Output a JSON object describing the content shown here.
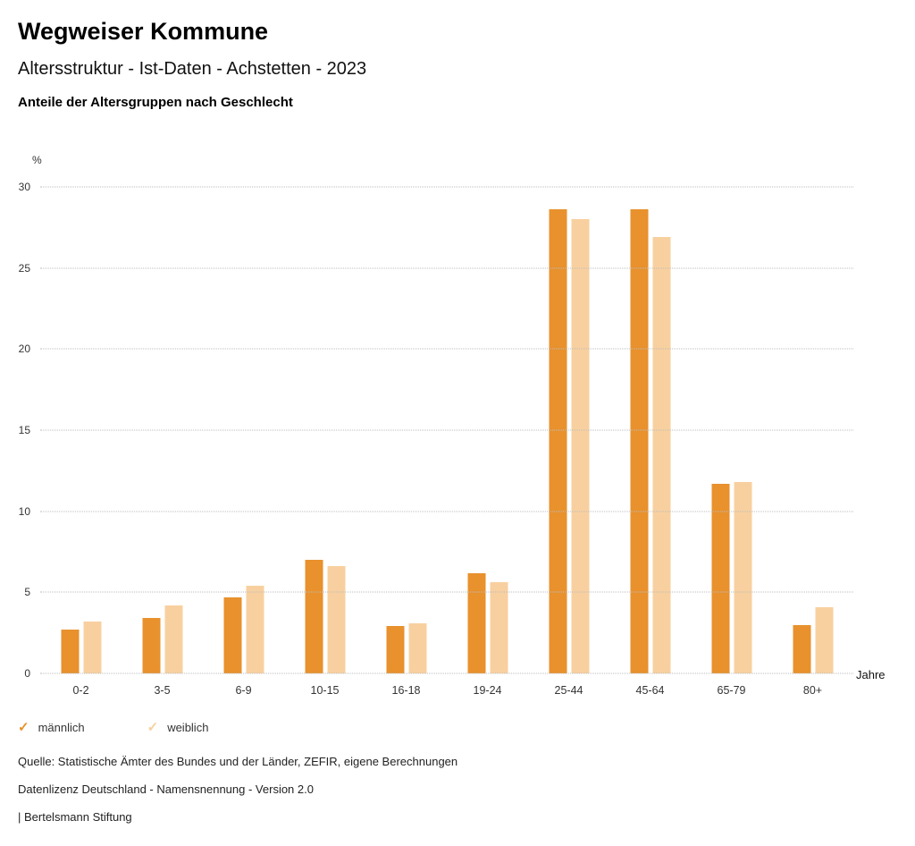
{
  "header": {
    "title": "Wegweiser Kommune",
    "subtitle": "Altersstruktur - Ist-Daten - Achstetten - 2023",
    "chart_heading": "Anteile der Altersgruppen nach Geschlecht"
  },
  "chart_data": {
    "type": "bar",
    "categories": [
      "0-2",
      "3-5",
      "6-9",
      "10-15",
      "16-18",
      "19-24",
      "25-44",
      "45-64",
      "65-79",
      "80+"
    ],
    "series": [
      {
        "name": "männlich",
        "color": "#E8912D",
        "values": [
          2.7,
          3.4,
          4.7,
          7.0,
          2.9,
          6.2,
          28.6,
          28.6,
          11.7,
          3.0
        ]
      },
      {
        "name": "weiblich",
        "color": "#F8D09F",
        "values": [
          3.2,
          4.2,
          5.4,
          6.6,
          3.1,
          5.6,
          28.0,
          26.9,
          11.8,
          4.1
        ]
      }
    ],
    "title": "Anteile der Altersgruppen nach Geschlecht",
    "xlabel": "Jahre",
    "ylabel": "%",
    "ylim": [
      0,
      30
    ],
    "yticks": [
      0,
      5,
      10,
      15,
      20,
      25,
      30
    ],
    "grid": "horizontal-dotted",
    "legend_position": "bottom-left"
  },
  "footer": {
    "source": "Quelle: Statistische Ämter des Bundes und der Länder, ZEFIR, eigene Berechnungen",
    "license": "Datenlizenz Deutschland - Namensnennung - Version 2.0",
    "attribution": "| Bertelsmann Stiftung"
  }
}
